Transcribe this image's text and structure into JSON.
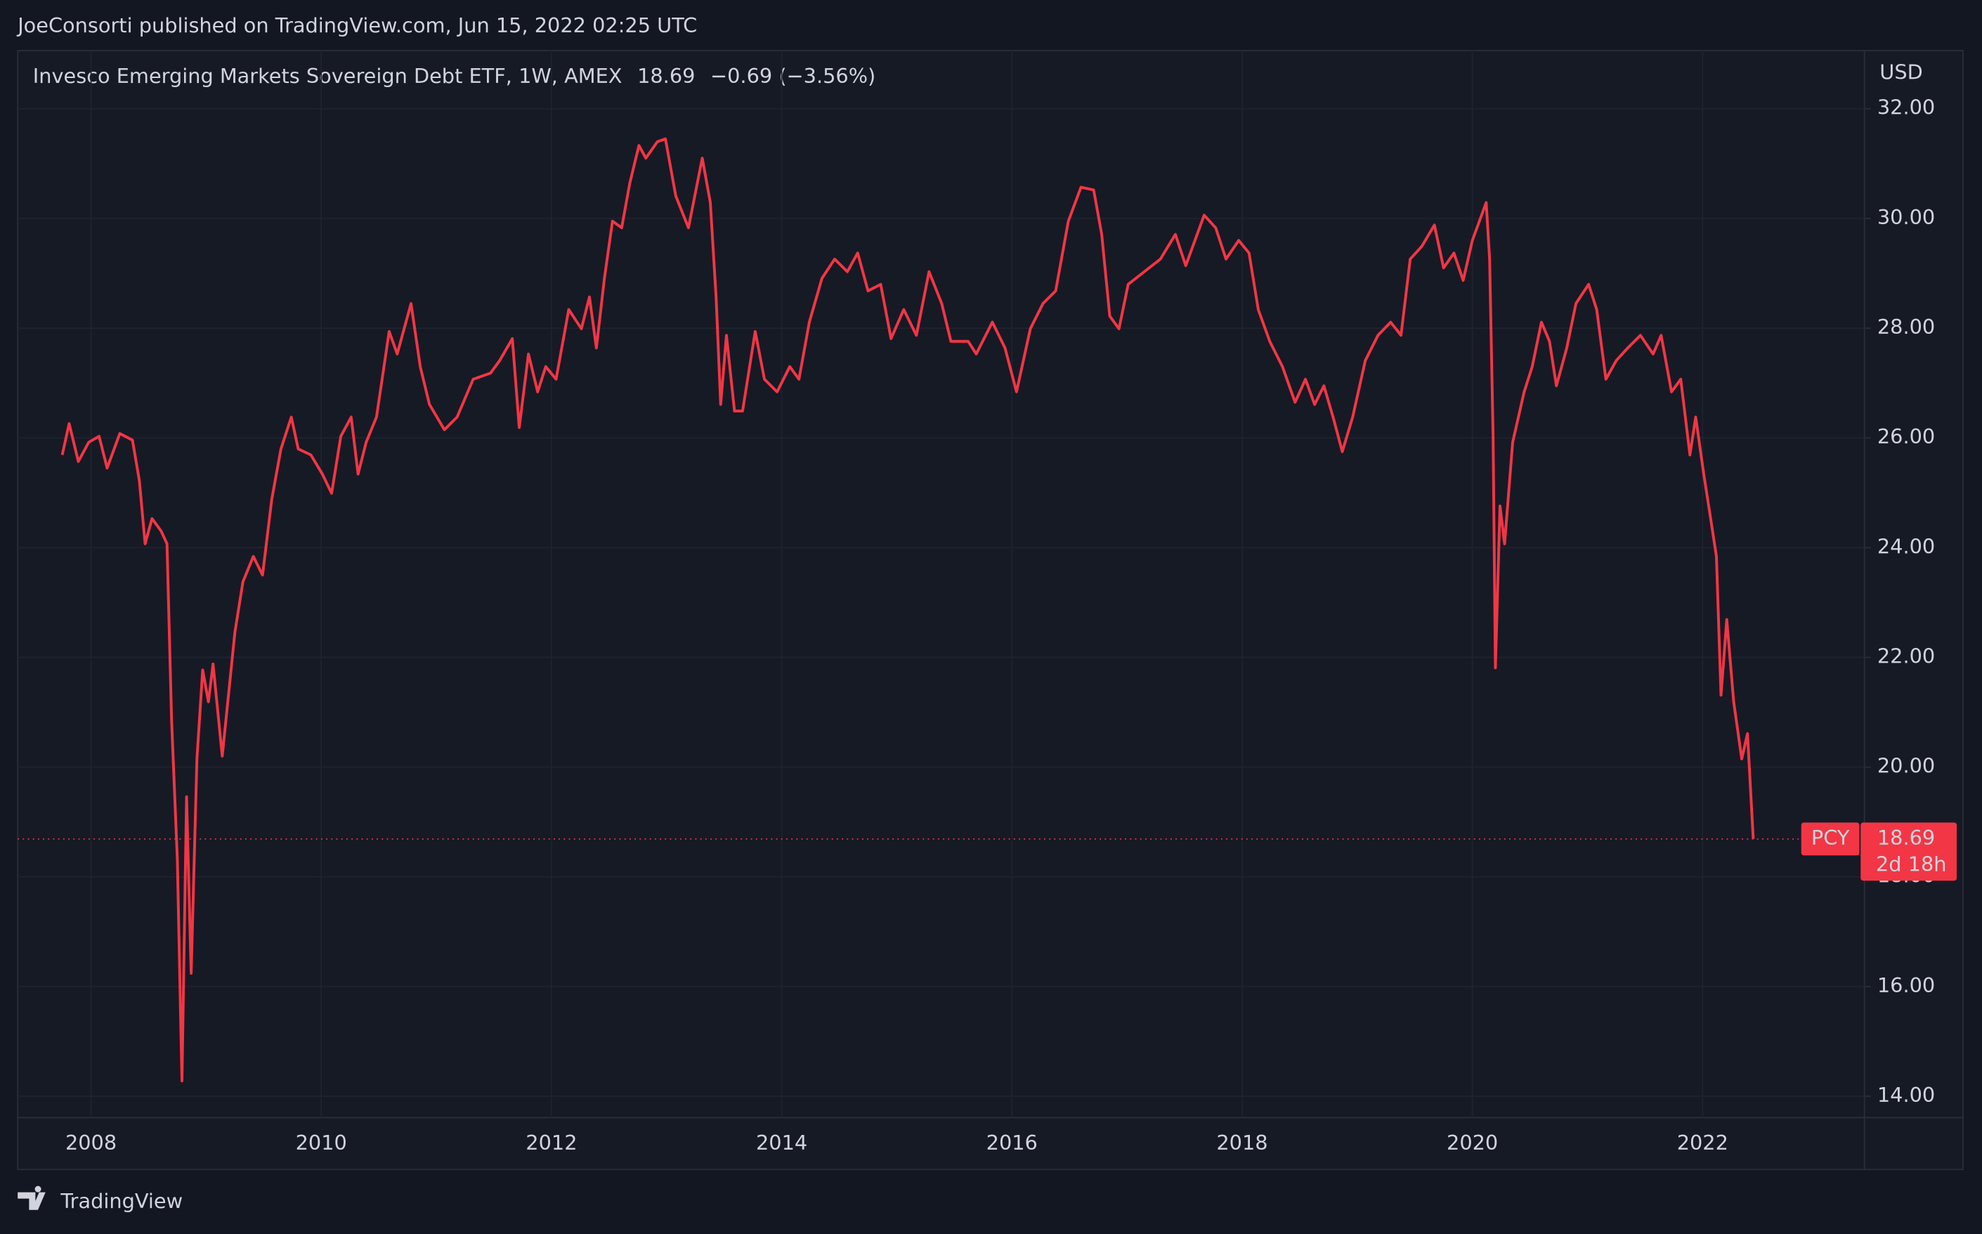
{
  "chart_data": {
    "type": "line",
    "header": "JoeConsorti published on TradingView.com, Jun 15, 2022 02:25 UTC",
    "currency": "USD",
    "symbol": "PCY",
    "last_price": 18.69,
    "change_label": "−0.69 (−3.56%)",
    "countdown": "2d 18h",
    "footer": "TradingView",
    "grid": true,
    "xlim": [
      2007.363,
      2023.406
    ],
    "ylim": [
      13.61,
      33.06
    ],
    "xticks": [
      2008,
      2010,
      2012,
      2014,
      2016,
      2018,
      2020,
      2022
    ],
    "yticks": [
      {
        "value": 14,
        "label": "14.00"
      },
      {
        "value": 16,
        "label": "16.00"
      },
      {
        "value": 18,
        "label": "18.00"
      },
      {
        "value": 20,
        "label": "20.00"
      },
      {
        "value": 22,
        "label": "22.00"
      },
      {
        "value": 24,
        "label": "24.00"
      },
      {
        "value": 26,
        "label": "26.00"
      },
      {
        "value": 28,
        "label": "28.00"
      },
      {
        "value": 30,
        "label": "30.00"
      },
      {
        "value": 32,
        "label": "32.00"
      }
    ],
    "x": [
      2007.75,
      2007.81,
      2007.89,
      2007.98,
      2008.07,
      2008.14,
      2008.25,
      2008.36,
      2008.42,
      2008.47,
      2008.53,
      2008.61,
      2008.66,
      2008.7,
      2008.75,
      2008.79,
      2008.83,
      2008.87,
      2008.92,
      2008.97,
      2009.02,
      2009.06,
      2009.14,
      2009.25,
      2009.32,
      2009.41,
      2009.49,
      2009.57,
      2009.65,
      2009.74,
      2009.8,
      2009.91,
      2010.01,
      2010.09,
      2010.17,
      2010.26,
      2010.32,
      2010.39,
      2010.48,
      2010.59,
      2010.66,
      2010.78,
      2010.86,
      2010.94,
      2011.07,
      2011.18,
      2011.32,
      2011.47,
      2011.55,
      2011.66,
      2011.72,
      2011.8,
      2011.88,
      2011.95,
      2012.04,
      2012.15,
      2012.26,
      2012.33,
      2012.39,
      2012.46,
      2012.53,
      2012.61,
      2012.68,
      2012.76,
      2012.82,
      2012.92,
      2012.99,
      2013.08,
      2013.19,
      2013.31,
      2013.38,
      2013.43,
      2013.47,
      2013.52,
      2013.59,
      2013.66,
      2013.77,
      2013.85,
      2013.96,
      2014.07,
      2014.15,
      2014.24,
      2014.35,
      2014.46,
      2014.57,
      2014.66,
      2014.75,
      2014.86,
      2014.95,
      2015.06,
      2015.17,
      2015.28,
      2015.39,
      2015.47,
      2015.62,
      2015.69,
      2015.83,
      2015.94,
      2016.04,
      2016.16,
      2016.27,
      2016.38,
      2016.49,
      2016.6,
      2016.71,
      2016.78,
      2016.85,
      2016.93,
      2017.01,
      2017.15,
      2017.29,
      2017.42,
      2017.51,
      2017.67,
      2017.77,
      2017.86,
      2017.97,
      2018.06,
      2018.14,
      2018.24,
      2018.35,
      2018.46,
      2018.55,
      2018.63,
      2018.71,
      2018.79,
      2018.87,
      2018.96,
      2019.07,
      2019.18,
      2019.29,
      2019.38,
      2019.46,
      2019.56,
      2019.67,
      2019.75,
      2019.84,
      2019.92,
      2020.0,
      2020.12,
      2020.15,
      2020.18,
      2020.2,
      2020.24,
      2020.28,
      2020.35,
      2020.45,
      2020.52,
      2020.6,
      2020.67,
      2020.73,
      2020.82,
      2020.9,
      2021.01,
      2021.08,
      2021.16,
      2021.25,
      2021.35,
      2021.46,
      2021.57,
      2021.64,
      2021.73,
      2021.81,
      2021.89,
      2021.94,
      2022.01,
      2022.07,
      2022.12,
      2022.16,
      2022.21,
      2022.27,
      2022.34,
      2022.39,
      2022.44
    ],
    "series": [
      {
        "name": "Invesco Emerging Markets Sovereign Debt ETF, 1W, AMEX",
        "color": "#f23645",
        "values": [
          25.69,
          26.26,
          25.57,
          25.92,
          26.03,
          25.45,
          26.08,
          25.96,
          25.22,
          24.07,
          24.53,
          24.3,
          24.07,
          20.85,
          18.31,
          14.28,
          19.46,
          16.24,
          20.15,
          21.77,
          21.19,
          21.88,
          20.2,
          22.46,
          23.38,
          23.84,
          23.5,
          24.88,
          25.8,
          26.38,
          25.8,
          25.69,
          25.34,
          24.99,
          26.03,
          26.38,
          25.34,
          25.92,
          26.38,
          27.94,
          27.53,
          28.45,
          27.3,
          26.61,
          26.15,
          26.38,
          27.07,
          27.18,
          27.41,
          27.81,
          26.19,
          27.53,
          26.84,
          27.3,
          27.07,
          28.34,
          27.99,
          28.57,
          27.64,
          28.91,
          29.95,
          29.83,
          30.64,
          31.33,
          31.1,
          31.4,
          31.45,
          30.41,
          29.83,
          31.1,
          30.29,
          28.57,
          26.61,
          27.87,
          26.49,
          26.49,
          27.94,
          27.07,
          26.84,
          27.3,
          27.07,
          28.11,
          28.91,
          29.26,
          29.03,
          29.37,
          28.68,
          28.8,
          27.81,
          28.34,
          27.87,
          29.03,
          28.45,
          27.76,
          27.76,
          27.53,
          28.11,
          27.64,
          26.84,
          27.99,
          28.45,
          28.68,
          29.95,
          30.57,
          30.52,
          29.71,
          28.22,
          27.99,
          28.8,
          29.03,
          29.26,
          29.71,
          29.14,
          30.06,
          29.83,
          29.26,
          29.6,
          29.37,
          28.34,
          27.76,
          27.3,
          26.65,
          27.07,
          26.61,
          26.95,
          26.38,
          25.75,
          26.38,
          27.41,
          27.87,
          28.11,
          27.87,
          29.26,
          29.49,
          29.88,
          29.1,
          29.37,
          28.87,
          29.6,
          30.29,
          29.26,
          26.03,
          21.81,
          24.76,
          24.07,
          25.92,
          26.84,
          27.3,
          28.11,
          27.76,
          26.95,
          27.64,
          28.45,
          28.8,
          28.34,
          27.07,
          27.41,
          27.64,
          27.87,
          27.53,
          27.87,
          26.84,
          27.07,
          25.69,
          26.38,
          25.34,
          24.53,
          23.84,
          21.31,
          22.69,
          21.19,
          20.15,
          20.61,
          18.69
        ]
      }
    ]
  }
}
